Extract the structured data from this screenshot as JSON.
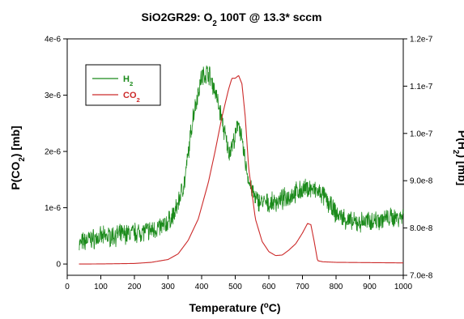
{
  "chart_data": {
    "type": "line",
    "title_parts": [
      "SiO2GR29: O",
      "2",
      " 100T @ 13.3* sccm"
    ],
    "xlabel_parts": [
      "Temperature (",
      "o",
      "C)"
    ],
    "ylabel_left_parts": [
      "P(CO",
      "2",
      ") [mb]"
    ],
    "ylabel_right_parts": [
      "P(H",
      "2",
      ") [mb]"
    ],
    "x_ticks": [
      0,
      100,
      200,
      300,
      400,
      500,
      600,
      700,
      800,
      900,
      1000
    ],
    "x_tick_labels": [
      "0",
      "100",
      "200",
      "300",
      "400",
      "500",
      "600",
      "700",
      "800",
      "900",
      "1000"
    ],
    "xlim": [
      0,
      1000
    ],
    "y_left_ticks": [
      0,
      1e-06,
      2e-06,
      3e-06,
      4e-06
    ],
    "y_left_tick_labels": [
      "0",
      "1e-6",
      "2e-6",
      "3e-6",
      "4e-6"
    ],
    "ylim_left": [
      -2e-07,
      4e-06
    ],
    "y_right_ticks": [
      7e-08,
      8e-08,
      9e-08,
      1e-07,
      1.1e-07,
      1.2e-07
    ],
    "y_right_tick_labels": [
      "7.0e-8",
      "8.0e-8",
      "9.0e-8",
      "1.0e-7",
      "1.1e-7",
      "1.2e-7"
    ],
    "ylim_right": [
      7e-08,
      1.2e-07
    ],
    "grid": false,
    "legend_position": "top-left",
    "series": [
      {
        "label_parts": [
          "H",
          "2"
        ],
        "axis": "right",
        "color": "#1a8a1a",
        "noisy": true,
        "x": [
          35,
          60,
          100,
          150,
          200,
          250,
          290,
          320,
          350,
          375,
          400,
          420,
          440,
          460,
          480,
          500,
          510,
          520,
          540,
          560,
          580,
          600,
          640,
          680,
          720,
          760,
          800,
          850,
          900,
          950,
          1000
        ],
        "y": [
          7.65e-08,
          7.75e-08,
          7.8e-08,
          7.85e-08,
          7.9e-08,
          7.95e-08,
          8.05e-08,
          8.3e-08,
          9e-08,
          1.04e-07,
          1.12e-07,
          1.13e-07,
          1.09e-07,
          1.03e-07,
          9.6e-08,
          9.9e-08,
          1.03e-07,
          9.8e-08,
          9e-08,
          8.6e-08,
          8.55e-08,
          8.5e-08,
          8.6e-08,
          8.75e-08,
          8.85e-08,
          8.7e-08,
          8.3e-08,
          8.1e-08,
          8.15e-08,
          8.2e-08,
          8.25e-08
        ]
      },
      {
        "label_parts": [
          "CO",
          "2"
        ],
        "axis": "left",
        "color": "#cc2a2a",
        "noisy": false,
        "x": [
          35,
          100,
          200,
          250,
          300,
          330,
          360,
          390,
          420,
          440,
          460,
          480,
          490,
          500,
          510,
          520,
          530,
          540,
          560,
          580,
          600,
          620,
          640,
          660,
          680,
          700,
          715,
          725,
          735,
          745,
          760,
          800,
          900,
          1000
        ],
        "y": [
          0,
          2e-09,
          1e-08,
          3e-08,
          8e-08,
          1.8e-07,
          4.2e-07,
          8e-07,
          1.45e-06,
          2e-06,
          2.6e-06,
          3.1e-06,
          3.3e-06,
          3.3e-06,
          3.35e-06,
          3.2e-06,
          2.6e-06,
          1.7e-06,
          8e-07,
          4e-07,
          2.2e-07,
          1.5e-07,
          1.6e-07,
          2.5e-07,
          3.6e-07,
          5.5e-07,
          7.2e-07,
          7e-07,
          4e-07,
          6e-08,
          4e-08,
          3e-08,
          2.5e-08,
          2e-08
        ]
      }
    ]
  }
}
